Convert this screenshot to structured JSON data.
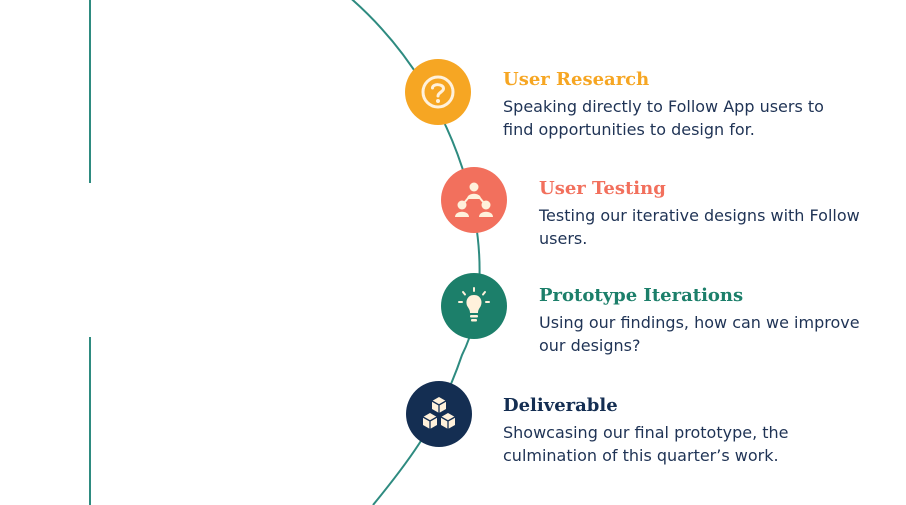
{
  "colors": {
    "line": "#2e8b80",
    "orange": "#f6a623",
    "coral": "#f2705d",
    "green": "#1c7f6a",
    "navy": "#142e52",
    "cream": "#fff1db"
  },
  "steps": [
    {
      "title": "User Research",
      "description": "Speaking directly to Follow App users to find opportunities to design for.",
      "icon": "question-icon",
      "color": "#f6a623"
    },
    {
      "title": "User Testing",
      "description": "Testing our iterative designs with Follow users.",
      "icon": "people-network-icon",
      "color": "#f2705d"
    },
    {
      "title": "Prototype Iterations",
      "description": "Using our findings, how can we improve our designs?",
      "icon": "lightbulb-icon",
      "color": "#1c7f6a"
    },
    {
      "title": "Deliverable",
      "description": "Showcasing our final prototype, the culmination of this quarter’s work.",
      "icon": "boxes-icon",
      "color": "#142e52"
    }
  ]
}
